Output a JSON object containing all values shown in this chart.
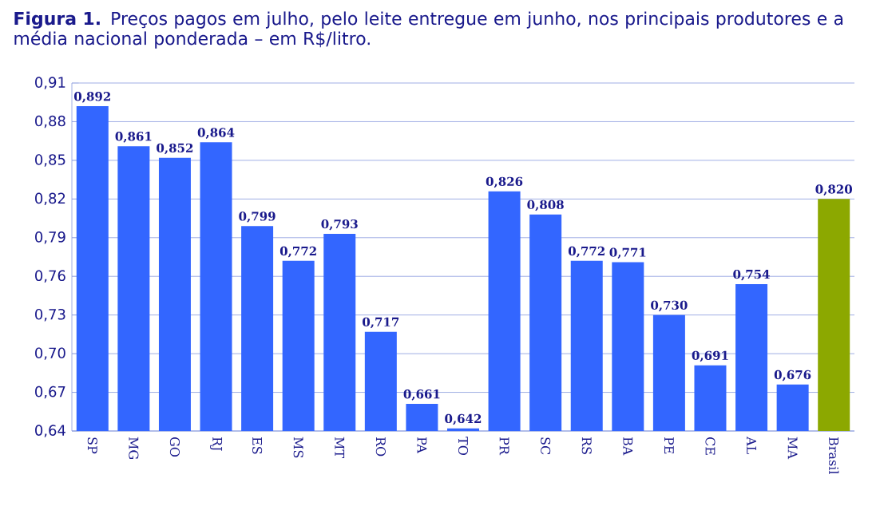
{
  "chart_data": {
    "type": "bar",
    "title": "**Figura 1.** Preços pagos em julho, pelo leite entregue em junho, nos principais produtores e a média nacional ponderada – em R$/litro.",
    "categories": [
      "SP",
      "MG",
      "GO",
      "RJ",
      "ES",
      "MS",
      "MT",
      "RO",
      "PA",
      "TO",
      "PR",
      "SC",
      "RS",
      "BA",
      "PE",
      "CE",
      "AL",
      "MA",
      "Brasil"
    ],
    "values": [
      0.892,
      0.861,
      0.852,
      0.864,
      0.799,
      0.772,
      0.793,
      0.717,
      0.661,
      0.642,
      0.826,
      0.808,
      0.772,
      0.771,
      0.73,
      0.691,
      0.754,
      0.676,
      0.82
    ],
    "value_labels": [
      "0,892",
      "0,861",
      "0,852",
      "0,864",
      "0,799",
      "0,772",
      "0,793",
      "0,717",
      "0,661",
      "0,642",
      "0,826",
      "0,808",
      "0,772",
      "0,771",
      "0,730",
      "0,691",
      "0,754",
      "0,676",
      "0,820"
    ],
    "colors": [
      "#3366ff",
      "#3366ff",
      "#3366ff",
      "#3366ff",
      "#3366ff",
      "#3366ff",
      "#3366ff",
      "#3366ff",
      "#3366ff",
      "#3366ff",
      "#3366ff",
      "#3366ff",
      "#3366ff",
      "#3366ff",
      "#3366ff",
      "#3366ff",
      "#3366ff",
      "#3366ff",
      "#8ca800"
    ],
    "ylim": [
      0.64,
      0.91
    ],
    "yticks": [
      {
        "value": 0.64,
        "label": "0,64"
      },
      {
        "value": 0.67,
        "label": "0,67"
      },
      {
        "value": 0.7,
        "label": "0,70"
      },
      {
        "value": 0.73,
        "label": "0,73"
      },
      {
        "value": 0.76,
        "label": "0,76"
      },
      {
        "value": 0.79,
        "label": "0,79"
      },
      {
        "value": 0.82,
        "label": "0,82"
      },
      {
        "value": 0.85,
        "label": "0,85"
      },
      {
        "value": 0.88,
        "label": "0,88"
      },
      {
        "value": 0.91,
        "label": "0,91"
      }
    ],
    "grid": "y"
  }
}
